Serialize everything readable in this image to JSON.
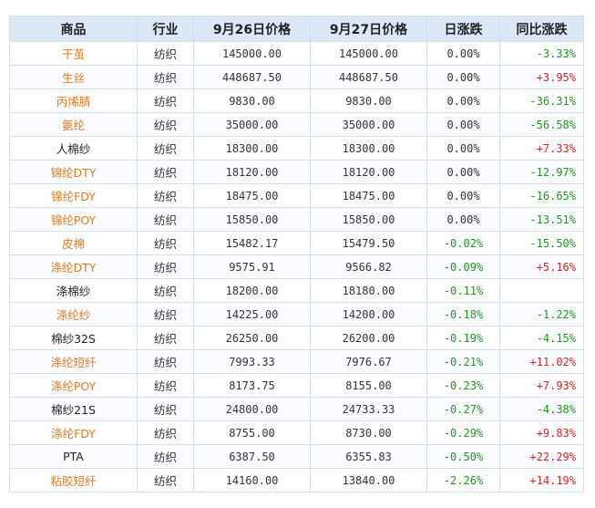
{
  "table": {
    "header": [
      "商品",
      "行业",
      "9月26日价格",
      "9月27日价格",
      "日涨跌",
      "同比涨跌"
    ],
    "rows": [
      {
        "name": "干茧",
        "name_color": "#e8781e",
        "industry": "纺织",
        "price_0926": "145000.00",
        "price_0927": "145000.00",
        "daily_change": "0.00%",
        "yoy_change": "-3.33%"
      },
      {
        "name": "生丝",
        "name_color": "#e8781e",
        "industry": "纺织",
        "price_0926": "448687.50",
        "price_0927": "448687.50",
        "daily_change": "0.00%",
        "yoy_change": "+3.95%"
      },
      {
        "name": "丙烯腈",
        "name_color": "#e8781e",
        "industry": "纺织",
        "price_0926": "9830.00",
        "price_0927": "9830.00",
        "daily_change": "0.00%",
        "yoy_change": "-36.31%"
      },
      {
        "name": "氨纶",
        "name_color": "#e8781e",
        "industry": "纺织",
        "price_0926": "35000.00",
        "price_0927": "35000.00",
        "daily_change": "0.00%",
        "yoy_change": "-56.58%"
      },
      {
        "name": "人棉纱",
        "name_color": "#222222",
        "industry": "纺织",
        "price_0926": "18300.00",
        "price_0927": "18300.00",
        "daily_change": "0.00%",
        "yoy_change": "+7.33%"
      },
      {
        "name": "锦纶DTY",
        "name_color": "#e8781e",
        "industry": "纺织",
        "price_0926": "18120.00",
        "price_0927": "18120.00",
        "daily_change": "0.00%",
        "yoy_change": "-12.97%"
      },
      {
        "name": "锦纶FDY",
        "name_color": "#e8781e",
        "industry": "纺织",
        "price_0926": "18475.00",
        "price_0927": "18475.00",
        "daily_change": "0.00%",
        "yoy_change": "-16.65%"
      },
      {
        "name": "锦纶POY",
        "name_color": "#e8781e",
        "industry": "纺织",
        "price_0926": "15850.00",
        "price_0927": "15850.00",
        "daily_change": "0.00%",
        "yoy_change": "-13.51%"
      },
      {
        "name": "皮棉",
        "name_color": "#e8781e",
        "industry": "纺织",
        "price_0926": "15482.17",
        "price_0927": "15479.50",
        "daily_change": "-0.02%",
        "yoy_change": "-15.50%"
      },
      {
        "name": "涤纶DTY",
        "name_color": "#e8781e",
        "industry": "纺织",
        "price_0926": "9575.91",
        "price_0927": "9566.82",
        "daily_change": "-0.09%",
        "yoy_change": "+5.16%"
      },
      {
        "name": "涤棉纱",
        "name_color": "#222222",
        "industry": "纺织",
        "price_0926": "18200.00",
        "price_0927": "18180.00",
        "daily_change": "-0.11%",
        "yoy_change": null
      },
      {
        "name": "涤纶纱",
        "name_color": "#e8781e",
        "industry": "纺织",
        "price_0926": "14225.00",
        "price_0927": "14200.00",
        "daily_change": "-0.18%",
        "yoy_change": "-1.22%"
      },
      {
        "name": "棉纱32S",
        "name_color": "#222222",
        "industry": "纺织",
        "price_0926": "26250.00",
        "price_0927": "26200.00",
        "daily_change": "-0.19%",
        "yoy_change": "-4.15%"
      },
      {
        "name": "涤纶短纤",
        "name_color": "#e8781e",
        "industry": "纺织",
        "price_0926": "7993.33",
        "price_0927": "7976.67",
        "daily_change": "-0.21%",
        "yoy_change": "+11.02%"
      },
      {
        "name": "涤纶POY",
        "name_color": "#e8781e",
        "industry": "纺织",
        "price_0926": "8173.75",
        "price_0927": "8155.00",
        "daily_change": "-0.23%",
        "yoy_change": "+7.93%"
      },
      {
        "name": "棉纱21S",
        "name_color": "#222222",
        "industry": "纺织",
        "price_0926": "24800.00",
        "price_0927": "24733.33",
        "daily_change": "-0.27%",
        "yoy_change": "-4.38%"
      },
      {
        "name": "涤纶FDY",
        "name_color": "#e8781e",
        "industry": "纺织",
        "price_0926": "8755.00",
        "price_0927": "8730.00",
        "daily_change": "-0.29%",
        "yoy_change": "+9.83%"
      },
      {
        "name": "PTA",
        "name_color": "#222222",
        "industry": "纺织",
        "price_0926": "6387.50",
        "price_0927": "6355.83",
        "daily_change": "-0.50%",
        "yoy_change": "+22.29%"
      },
      {
        "name": "粘胶短纤",
        "name_color": "#e8781e",
        "industry": "纺织",
        "price_0926": "14160.00",
        "price_0927": "13840.00",
        "daily_change": "-2.26%",
        "yoy_change": "+14.19%"
      }
    ]
  }
}
